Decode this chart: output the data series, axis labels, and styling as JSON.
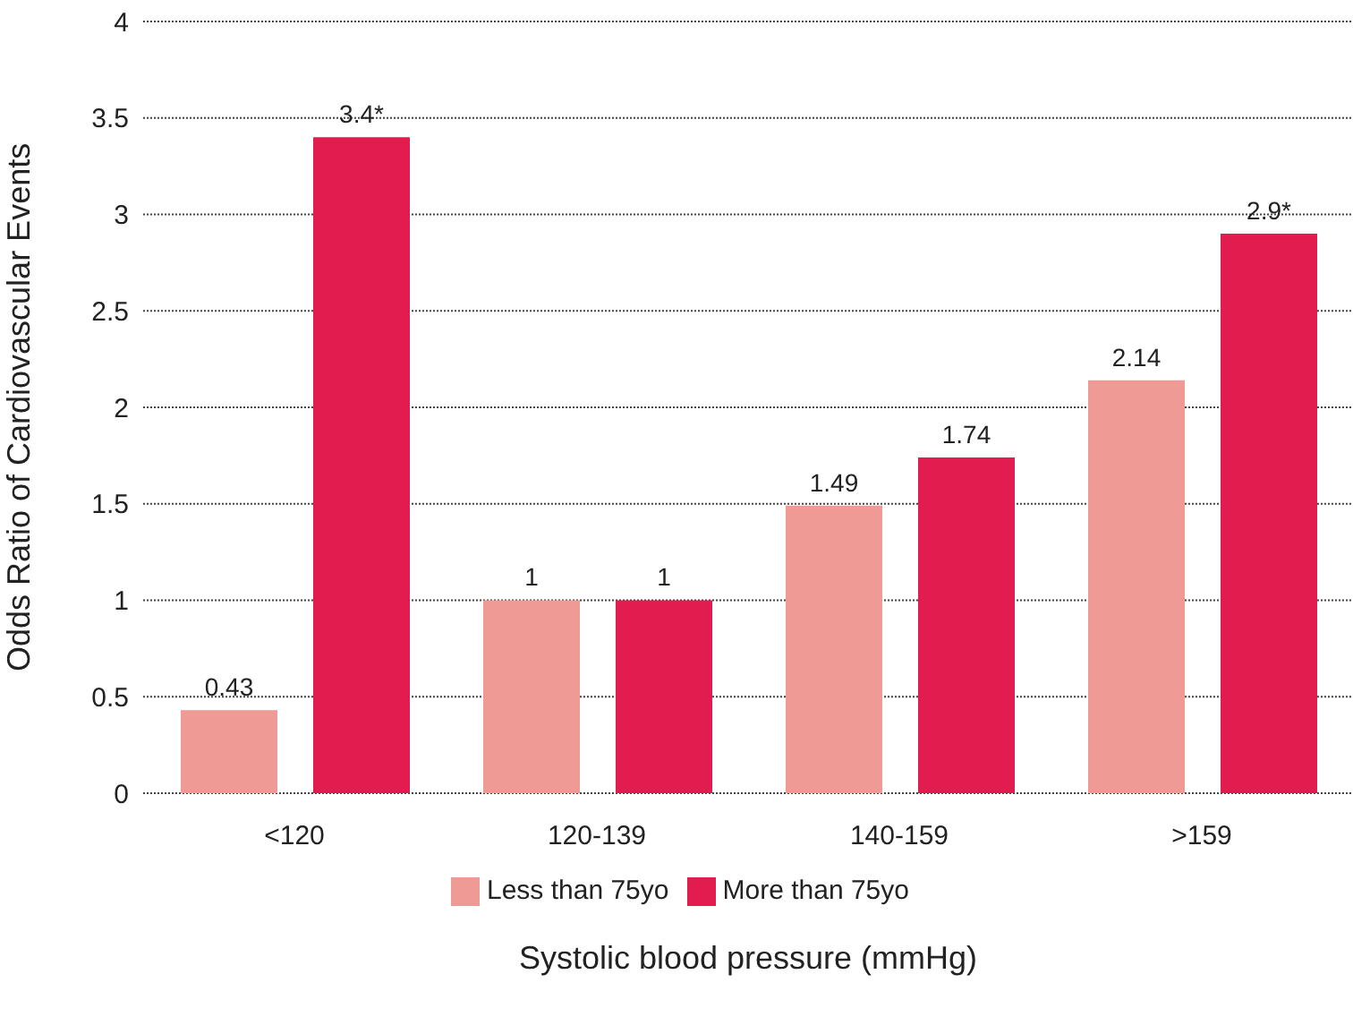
{
  "chart_data": {
    "type": "bar",
    "xlabel": "Systolic blood pressure (mmHg)",
    "ylabel": "Odds Ratio of Cardiovascular Events",
    "categories": [
      "<120",
      "120-139",
      "140-159",
      ">159"
    ],
    "series": [
      {
        "name": "Less than 75yo",
        "color": "#f09a96",
        "values": [
          0.43,
          1,
          1.49,
          2.14
        ],
        "value_labels": [
          "0.43",
          "1",
          "1.49",
          "2.14"
        ]
      },
      {
        "name": "More than 75yo",
        "color": "#e31c50",
        "values": [
          3.4,
          1,
          1.74,
          2.9
        ],
        "value_labels": [
          "3.4*",
          "1",
          "1.74",
          "2.9*"
        ]
      }
    ],
    "ylim": [
      0,
      4
    ],
    "yticks": [
      0,
      0.5,
      1,
      1.5,
      2,
      2.5,
      3,
      3.5,
      4
    ],
    "grid": "y",
    "legend": "bottom"
  }
}
